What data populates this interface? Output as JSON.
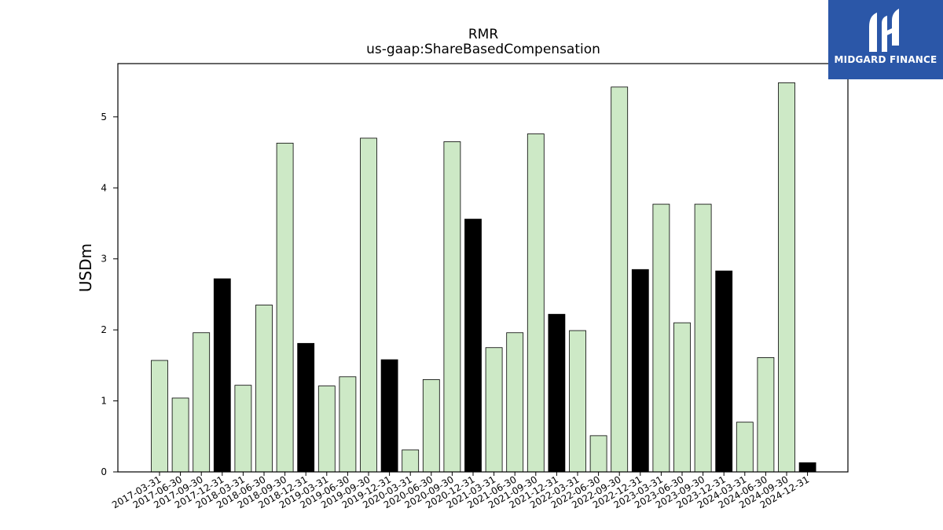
{
  "logo": {
    "text": "MIDGARD FINANCE",
    "icon": "midgard-logo-icon",
    "background": "#2b57a8"
  },
  "chart_data": {
    "type": "bar",
    "title": "RMR",
    "subtitle": "us-gaap:ShareBasedCompensation",
    "xlabel": "",
    "ylabel": "USDm",
    "ylim": [
      0,
      5.75
    ],
    "yticks": [
      0,
      1,
      2,
      3,
      4,
      5
    ],
    "grid": false,
    "categories": [
      "2017-03-31",
      "2017-06-30",
      "2017-09-30",
      "2017-12-31",
      "2018-03-31",
      "2018-06-30",
      "2018-09-30",
      "2018-12-31",
      "2019-03-31",
      "2019-06-30",
      "2019-09-30",
      "2019-12-31",
      "2020-03-31",
      "2020-06-30",
      "2020-09-30",
      "2020-12-31",
      "2021-03-31",
      "2021-06-30",
      "2021-09-30",
      "2021-12-31",
      "2022-03-31",
      "2022-06-30",
      "2022-09-30",
      "2022-12-31",
      "2023-03-31",
      "2023-06-30",
      "2023-09-30",
      "2023-12-31",
      "2024-03-31",
      "2024-06-30",
      "2024-09-30",
      "2024-12-31"
    ],
    "values": [
      1.57,
      1.04,
      1.96,
      2.72,
      1.22,
      2.35,
      4.63,
      1.81,
      1.21,
      1.34,
      4.7,
      1.58,
      0.31,
      1.3,
      4.65,
      3.56,
      1.75,
      1.96,
      4.76,
      2.22,
      1.99,
      0.51,
      5.42,
      2.85,
      3.77,
      2.1,
      3.77,
      2.83,
      0.7,
      1.61,
      5.48,
      0.13
    ],
    "colors": {
      "quarter": "#cde9c6",
      "year_end": "#000000",
      "edge": "#000000"
    }
  }
}
